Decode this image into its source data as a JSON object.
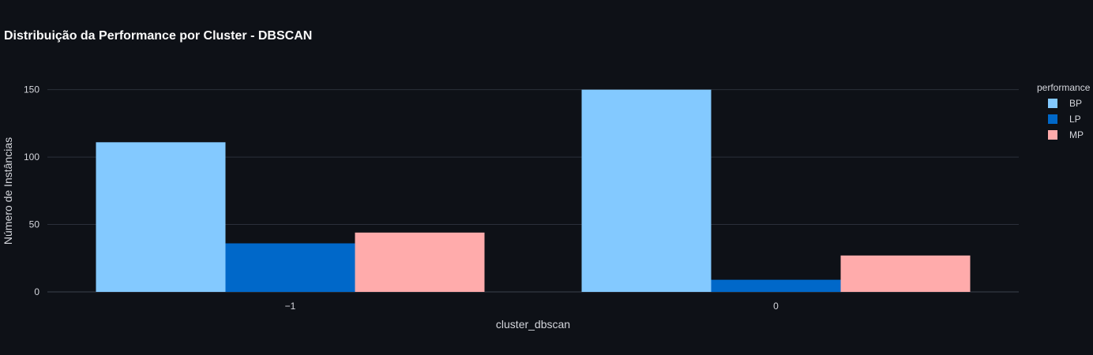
{
  "chart_data": {
    "type": "bar",
    "title": "Distribuição da Performance por Cluster - DBSCAN",
    "xlabel": "cluster_dbscan",
    "ylabel": "Número de Instâncias",
    "categories": [
      "−1",
      "0"
    ],
    "yticks": [
      0,
      50,
      100,
      150
    ],
    "ylim": [
      0,
      158
    ],
    "grid": true,
    "legend": {
      "title": "performance",
      "placement": "right"
    },
    "series": [
      {
        "name": "BP",
        "color": "#83c9ff",
        "values": [
          111,
          150
        ]
      },
      {
        "name": "LP",
        "color": "#0068c9",
        "values": [
          36,
          9
        ]
      },
      {
        "name": "MP",
        "color": "#ffabab",
        "values": [
          44,
          27
        ]
      }
    ]
  },
  "colors": {
    "background": "#0e1117",
    "text": "#d4d6dc",
    "grid": "#2b303a"
  }
}
